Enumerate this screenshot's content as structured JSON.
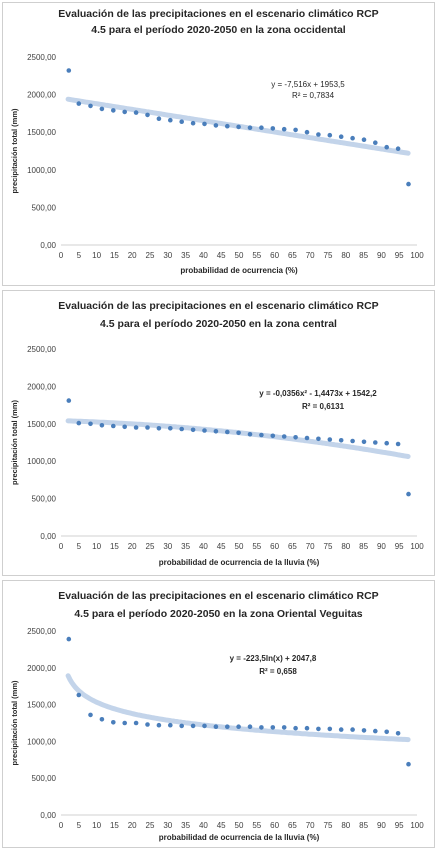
{
  "chart_data": [
    {
      "type": "scatter",
      "title_line1": "Evaluación de las precipitaciones en el escenario climático RCP",
      "title_line2": "4.5 para el período 2020-2050 en la zona occidental",
      "xlabel": "probabilidad de ocurrencia (%)",
      "ylabel": "precipitación total (mm)",
      "xlim": [
        0,
        100
      ],
      "ylim": [
        0,
        2500
      ],
      "x_ticks": [
        "0",
        "5",
        "10",
        "15",
        "20",
        "25",
        "30",
        "35",
        "40",
        "45",
        "50",
        "55",
        "60",
        "65",
        "70",
        "75",
        "80",
        "85",
        "90",
        "95",
        "100"
      ],
      "y_ticks": [
        "0,00",
        "500,00",
        "1000,00",
        "1500,00",
        "2000,00",
        "2500,00"
      ],
      "equation": "y = -7,516x + 1953,5",
      "r2": "R² = 0,7834",
      "trend": {
        "kind": "linear",
        "a": -7.516,
        "b": 1953.5
      },
      "x": [
        2.2,
        5,
        8.3,
        11.5,
        14.7,
        17.9,
        21.1,
        24.3,
        27.5,
        30.7,
        33.9,
        37.1,
        40.3,
        43.5,
        46.7,
        49.9,
        53.1,
        56.3,
        59.5,
        62.7,
        65.9,
        69.1,
        72.3,
        75.5,
        78.7,
        81.9,
        85.1,
        88.3,
        91.5,
        94.7,
        97.6
      ],
      "values": [
        2320,
        1880,
        1850,
        1810,
        1790,
        1770,
        1760,
        1730,
        1680,
        1660,
        1640,
        1620,
        1610,
        1590,
        1580,
        1570,
        1560,
        1560,
        1550,
        1540,
        1530,
        1500,
        1470,
        1460,
        1440,
        1420,
        1400,
        1360,
        1300,
        1280,
        810
      ],
      "grid": false,
      "legend": "none"
    },
    {
      "type": "scatter",
      "title_line1": "Evaluación de las precipitaciones en el escenario climático RCP",
      "title_line2": "4.5 para el período 2020-2050 en la zona central",
      "xlabel": "probabilidad de ocurrencia de la lluvia (%)",
      "ylabel": "precipitación total (mm)",
      "xlim": [
        0,
        100
      ],
      "ylim": [
        0,
        2500
      ],
      "x_ticks": [
        "0",
        "5",
        "10",
        "15",
        "20",
        "25",
        "30",
        "35",
        "40",
        "45",
        "50",
        "55",
        "60",
        "65",
        "70",
        "75",
        "80",
        "85",
        "90",
        "95",
        "100"
      ],
      "y_ticks": [
        "0,00",
        "500,00",
        "1000,00",
        "1500,00",
        "2000,00",
        "2500,00"
      ],
      "equation": "y = -0,0356x² - 1,4473x + 1542,2",
      "r2": "R² = 0,6131",
      "trend": {
        "kind": "poly2",
        "a": -0.0356,
        "b": -1.4473,
        "c": 1542.2
      },
      "x": [
        2.2,
        5,
        8.3,
        11.5,
        14.7,
        17.9,
        21.1,
        24.3,
        27.5,
        30.7,
        33.9,
        37.1,
        40.3,
        43.5,
        46.7,
        49.9,
        53.1,
        56.3,
        59.5,
        62.7,
        65.9,
        69.1,
        72.3,
        75.5,
        78.7,
        81.9,
        85.1,
        88.3,
        91.5,
        94.7,
        97.6
      ],
      "values": [
        1810,
        1510,
        1500,
        1480,
        1470,
        1460,
        1450,
        1450,
        1440,
        1440,
        1430,
        1420,
        1410,
        1400,
        1390,
        1380,
        1360,
        1350,
        1340,
        1330,
        1320,
        1310,
        1300,
        1290,
        1280,
        1270,
        1260,
        1250,
        1240,
        1230,
        560
      ],
      "grid": false,
      "legend": "none"
    },
    {
      "type": "scatter",
      "title_line1": "Evaluación de las precipitaciones en el escenario climático RCP",
      "title_line2": "4.5 para el período 2020-2050 en la zona Oriental Veguitas",
      "xlabel": "probabilidad de ocurrencia de la lluvia (%)",
      "ylabel": "precipitación total (mm)",
      "xlim": [
        0,
        100
      ],
      "ylim": [
        0,
        2500
      ],
      "x_ticks": [
        "0",
        "5",
        "10",
        "15",
        "20",
        "25",
        "30",
        "35",
        "40",
        "45",
        "50",
        "55",
        "60",
        "65",
        "70",
        "75",
        "80",
        "85",
        "90",
        "95",
        "100"
      ],
      "y_ticks": [
        "0,00",
        "500,00",
        "1000,00",
        "1500,00",
        "2000,00",
        "2500,00"
      ],
      "equation": "y = -223,5ln(x) + 2047,8",
      "r2": "R² = 0,658",
      "trend": {
        "kind": "log",
        "a": -223.5,
        "b": 2047.8
      },
      "x": [
        2.2,
        5,
        8.3,
        11.5,
        14.7,
        17.9,
        21.1,
        24.3,
        27.5,
        30.7,
        33.9,
        37.1,
        40.3,
        43.5,
        46.7,
        49.9,
        53.1,
        56.3,
        59.5,
        62.7,
        65.9,
        69.1,
        72.3,
        75.5,
        78.7,
        81.9,
        85.1,
        88.3,
        91.5,
        94.7,
        97.6
      ],
      "values": [
        2390,
        1630,
        1360,
        1300,
        1260,
        1250,
        1250,
        1230,
        1220,
        1220,
        1210,
        1210,
        1210,
        1200,
        1200,
        1200,
        1200,
        1190,
        1190,
        1190,
        1180,
        1180,
        1170,
        1170,
        1160,
        1160,
        1150,
        1140,
        1130,
        1110,
        690
      ],
      "grid": false,
      "legend": "none"
    }
  ],
  "colors": {
    "point": "#4a7ebb",
    "trend": "#b8cde6",
    "text": "#262626",
    "axis": "#8c8c8c"
  }
}
